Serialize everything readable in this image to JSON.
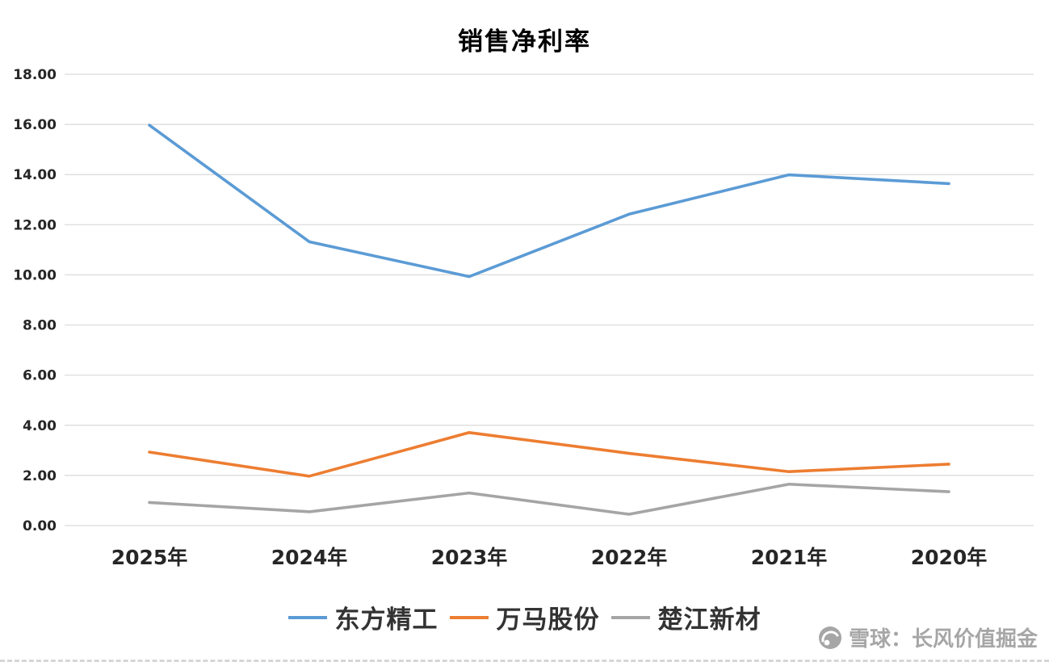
{
  "chart_data": {
    "type": "line",
    "title": "销售净利率",
    "categories": [
      "2025年",
      "2024年",
      "2023年",
      "2022年",
      "2021年",
      "2020年"
    ],
    "series": [
      {
        "name": "东方精工",
        "color": "#5B9BD5",
        "values": [
          15.97,
          11.32,
          9.93,
          12.42,
          13.99,
          13.64
        ]
      },
      {
        "name": "万马股份",
        "color": "#ED7D31",
        "values": [
          2.93,
          1.97,
          3.71,
          2.88,
          2.15,
          2.45
        ]
      },
      {
        "name": "楚江新材",
        "color": "#A5A5A5",
        "values": [
          0.92,
          0.55,
          1.3,
          0.45,
          1.65,
          1.35
        ]
      }
    ],
    "ylim": [
      0,
      18
    ],
    "ytick_step": 2,
    "ytick_labels": [
      "0.00",
      "2.00",
      "4.00",
      "6.00",
      "8.00",
      "10.00",
      "12.00",
      "14.00",
      "16.00",
      "18.00"
    ],
    "grid": true,
    "grid_color": "#D9D9D9",
    "legend_position": "bottom"
  },
  "watermark": {
    "text": "雪球：长风价值掘金",
    "icon": "xueqiu-snowball-logo",
    "color": "#a6a6a6"
  }
}
